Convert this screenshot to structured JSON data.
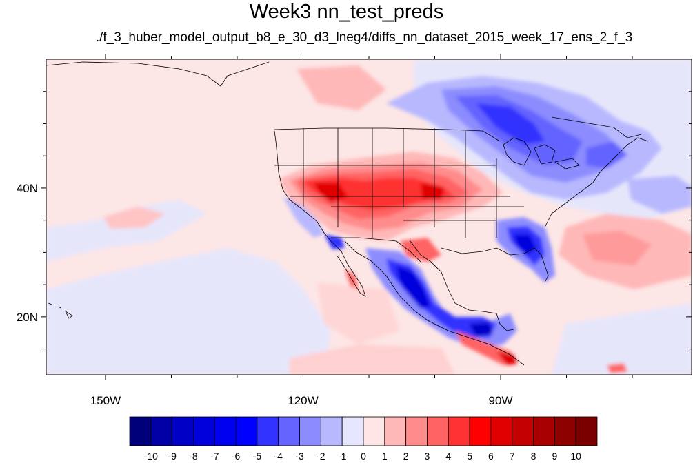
{
  "title": "Week3 nn_test_preds",
  "subtitle": "./f_3_huber_model_output_b8_e_30_d3_lneg4/diffs_nn_dataset_2015_week_17_ens_2_f_3",
  "map": {
    "lon_range": [
      -159,
      -61
    ],
    "lat_range": [
      11,
      60
    ],
    "lon_ticks": [
      {
        "value": -150,
        "label": "150W"
      },
      {
        "value": -120,
        "label": "120W"
      },
      {
        "value": -90,
        "label": "90W"
      }
    ],
    "lat_ticks": [
      {
        "value": 40,
        "label": "40N"
      },
      {
        "value": 20,
        "label": "20N"
      }
    ],
    "background_value": "0 to 1",
    "features": [
      "coastlines",
      "state-borders",
      "country-borders"
    ]
  },
  "colorbar": {
    "labels": [
      "-10",
      "-9",
      "-8",
      "-7",
      "-6",
      "-5",
      "-4",
      "-3",
      "-2",
      "-1",
      "0",
      "1",
      "2",
      "3",
      "4",
      "5",
      "6",
      "7",
      "8",
      "9",
      "10"
    ],
    "colors": [
      "#00007a",
      "#0000a6",
      "#0000c6",
      "#0000dc",
      "#0000f0",
      "#0000ff",
      "#3333ff",
      "#6464ff",
      "#8c8cff",
      "#b8b8ff",
      "#e6e6ff",
      "#ffe6e6",
      "#ffb8b8",
      "#ff8c8c",
      "#ff6464",
      "#ff3333",
      "#ff0000",
      "#e00000",
      "#c40000",
      "#a80000",
      "#8c0000",
      "#7a0000"
    ]
  },
  "colors": {
    "background_pale_pink": "#fde6e6",
    "background_pale_blue": "#e6e6fb",
    "outline": "#000000"
  }
}
